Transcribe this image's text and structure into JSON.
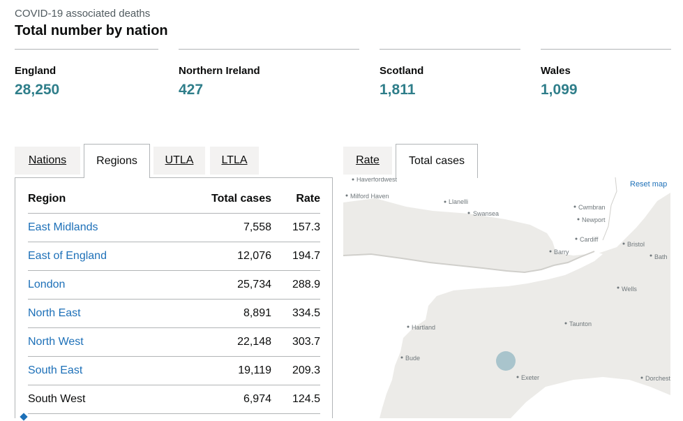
{
  "header": {
    "kicker": "COVID-19 associated deaths",
    "title": "Total number by nation"
  },
  "nations": [
    {
      "name": "England",
      "value": "28,250"
    },
    {
      "name": "Northern Ireland",
      "value": "427"
    },
    {
      "name": "Scotland",
      "value": "1,811"
    },
    {
      "name": "Wales",
      "value": "1,099"
    }
  ],
  "colors": {
    "accent_value": "#2f7e8a",
    "link": "#1d70b8",
    "land": "#ecebe8",
    "sea": "#ffffff",
    "bubble": "#a9c4cc"
  },
  "left_tabs": [
    {
      "label": "Nations",
      "active": false
    },
    {
      "label": "Regions",
      "active": true
    },
    {
      "label": "UTLA",
      "active": false
    },
    {
      "label": "LTLA",
      "active": false
    }
  ],
  "table": {
    "headers": [
      "Region",
      "Total cases",
      "Rate"
    ],
    "rows": [
      {
        "region": "East Midlands",
        "cases": "7,558",
        "rate": "157.3"
      },
      {
        "region": "East of England",
        "cases": "12,076",
        "rate": "194.7"
      },
      {
        "region": "London",
        "cases": "25,734",
        "rate": "288.9"
      },
      {
        "region": "North East",
        "cases": "8,891",
        "rate": "334.5"
      },
      {
        "region": "North West",
        "cases": "22,148",
        "rate": "303.7"
      },
      {
        "region": "South East",
        "cases": "19,119",
        "rate": "209.3"
      },
      {
        "region": "South West",
        "cases": "6,974",
        "rate": "124.5"
      }
    ]
  },
  "right_tabs": [
    {
      "label": "Rate",
      "active": false
    },
    {
      "label": "Total cases",
      "active": true
    }
  ],
  "map": {
    "reset_label": "Reset map",
    "places": [
      "Haverfordwest",
      "Milford Haven",
      "Llanelli",
      "Swansea",
      "Cwmbran",
      "Newport",
      "Cardiff",
      "Barry",
      "Bristol",
      "Bath",
      "Wells",
      "Taunton",
      "Hartland",
      "Bude",
      "Exeter",
      "Dorchester"
    ]
  }
}
